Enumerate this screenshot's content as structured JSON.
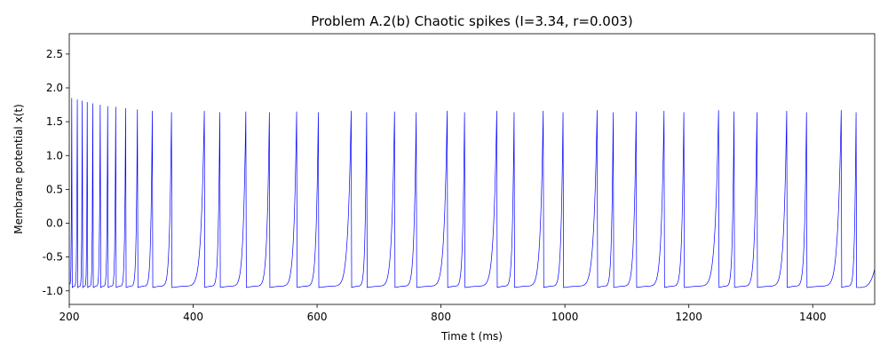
{
  "chart_data": {
    "type": "line",
    "title": "Problem A.2(b) Chaotic spikes (I=3.34, r=0.003)",
    "xlabel": "Time t (ms)",
    "ylabel": "Membrane potential x(t)",
    "xlim": [
      200,
      1500
    ],
    "ylim": [
      -1.2,
      2.8
    ],
    "xticks": [
      200,
      400,
      600,
      800,
      1000,
      1200,
      1400
    ],
    "yticks": [
      -1.0,
      -0.5,
      0.0,
      0.5,
      1.0,
      1.5,
      2.0,
      2.5
    ],
    "grid": false,
    "line_color": "#0000ff",
    "series": [
      {
        "spike_times": [
          204,
          213,
          221,
          229,
          238,
          250,
          262,
          275,
          291,
          310,
          334,
          365,
          418,
          443,
          485,
          523,
          567,
          602,
          655,
          680,
          725,
          760,
          810,
          838,
          890,
          918,
          965,
          997,
          1052,
          1078,
          1115,
          1160,
          1192,
          1248,
          1273,
          1310,
          1358,
          1390,
          1446,
          1470
        ],
        "spike_peaks": [
          1.85,
          1.83,
          1.81,
          1.79,
          1.77,
          1.75,
          1.73,
          1.72,
          1.7,
          1.68,
          1.66,
          1.64,
          1.66,
          1.64,
          1.65,
          1.64,
          1.65,
          1.64,
          1.66,
          1.64,
          1.65,
          1.64,
          1.66,
          1.64,
          1.66,
          1.64,
          1.66,
          1.64,
          1.67,
          1.64,
          1.65,
          1.66,
          1.64,
          1.67,
          1.65,
          1.64,
          1.66,
          1.64,
          1.67,
          1.64
        ],
        "rest_level": -0.95,
        "start_value": -0.9,
        "end_value": -0.68
      }
    ]
  }
}
